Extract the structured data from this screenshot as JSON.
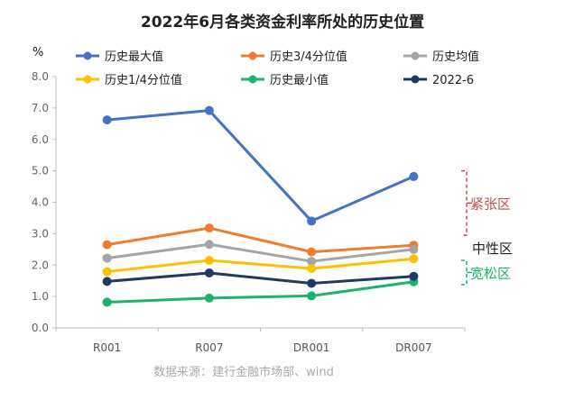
{
  "chart_data": {
    "type": "line",
    "title": "2022年6月各类资金利率所处的历史位置",
    "ylabel": "%",
    "xlabel": "",
    "ylim": [
      0.0,
      8.0
    ],
    "yticks": [
      "0.0",
      "1.0",
      "2.0",
      "3.0",
      "4.0",
      "5.0",
      "6.0",
      "7.0",
      "8.0"
    ],
    "categories": [
      "R001",
      "R007",
      "DR001",
      "DR007"
    ],
    "grid": false,
    "legend_position": "top",
    "series": [
      {
        "name": "历史最大值",
        "color": "#4472C4",
        "values": [
          6.62,
          6.92,
          3.4,
          4.82
        ]
      },
      {
        "name": "历史3/4分位值",
        "color": "#ED7D31",
        "values": [
          2.65,
          3.18,
          2.42,
          2.63
        ]
      },
      {
        "name": "历史均值",
        "color": "#A5A5A5",
        "values": [
          2.22,
          2.66,
          2.12,
          2.5
        ]
      },
      {
        "name": "历史1/4分位值",
        "color": "#FFC000",
        "values": [
          1.79,
          2.15,
          1.89,
          2.2
        ]
      },
      {
        "name": "历史最小值",
        "color": "#1DB36F",
        "values": [
          0.82,
          0.95,
          1.02,
          1.47
        ]
      },
      {
        "name": "2022-6",
        "color": "#203864",
        "values": [
          1.48,
          1.75,
          1.42,
          1.64
        ]
      }
    ],
    "annotations": [
      {
        "text": "紧张区",
        "color": "#C0504D"
      },
      {
        "text": "中性区",
        "color": "#222222"
      },
      {
        "text": "宽松区",
        "color": "#1DB36F"
      }
    ],
    "source": "数据来源：建行金融市场部、wind"
  }
}
